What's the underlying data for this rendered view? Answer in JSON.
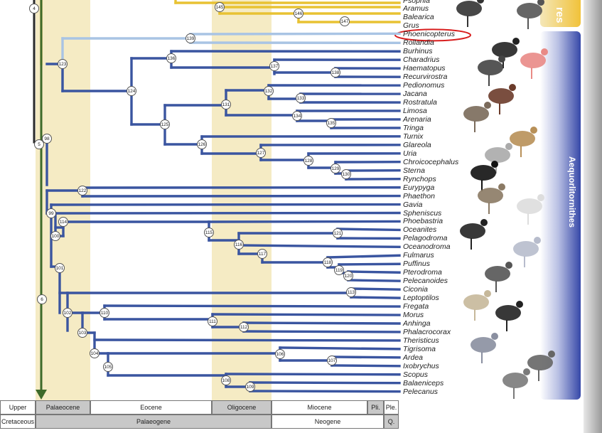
{
  "taxa": [
    "Psophia",
    "Aramus",
    "Balearica",
    "Grus",
    "Phoenicopterus",
    "Rollandia",
    "Burhinus",
    "Charadrius",
    "Haematopus",
    "Recurvirostra",
    "Pedionomus",
    "Jacana",
    "Rostratula",
    "Limosa",
    "Arenaria",
    "Tringa",
    "Turnix",
    "Glareola",
    "Uria",
    "Chroicocephalus",
    "Sterna",
    "Rynchops",
    "Eurypyga",
    "Phaethon",
    "Gavia",
    "Spheniscus",
    "Phoebastria",
    "Oceanites",
    "Pelagodroma",
    "Oceanodroma",
    "Fulmarus",
    "Puffinus",
    "Pterodroma",
    "Pelecanoides",
    "Ciconia",
    "Leptoptilos",
    "Fregata",
    "Morus",
    "Anhinga",
    "Phalacrocorax",
    "Theristicus",
    "Tigrisoma",
    "Ardea",
    "Ixobrychus",
    "Scopus",
    "Balaeniceps",
    "Pelecanus"
  ],
  "highlighted_taxon": "Phoenicopterus",
  "nodes": [
    "4",
    "145",
    "146",
    "147",
    "139",
    "136",
    "137",
    "138",
    "123",
    "124",
    "132",
    "133",
    "131",
    "134",
    "135",
    "125",
    "126",
    "127",
    "128",
    "129",
    "130",
    "98",
    "5",
    "122",
    "99",
    "114",
    "100",
    "115",
    "121",
    "116",
    "117",
    "118",
    "119",
    "120",
    "101",
    "113",
    "6",
    "102",
    "110",
    "111",
    "112",
    "103",
    "104",
    "106",
    "107",
    "105",
    "108",
    "109"
  ],
  "clade_labels": {
    "top": "res",
    "bottom": "Aequorlitornithes"
  },
  "timescale": {
    "epoch_row": {
      "label": "Upper",
      "cells": [
        "Palaeocene",
        "Eocene",
        "Oligocene",
        "Miocene",
        "Pli.",
        "Ple."
      ]
    },
    "period_row": {
      "label": "Cretaceous",
      "cells": [
        "Palaeogene",
        "Neogene",
        "Q."
      ]
    }
  },
  "colors": {
    "branch_blue": "#3a55a0",
    "branch_light": "#a9c4e4",
    "branch_yellow": "#e8c233",
    "axis_green": "#3d6a2a",
    "epoch_shade": "#f5ebc4",
    "highlight_red": "#d81e1e"
  }
}
